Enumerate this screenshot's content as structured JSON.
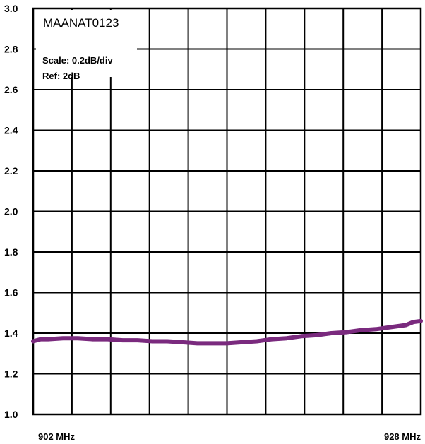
{
  "chart_data": {
    "type": "line",
    "title": "MAANAT0123",
    "annotations": [
      "Scale: 0.2dB/div",
      "Ref: 2dB"
    ],
    "xlabel": "",
    "ylabel": "",
    "x_tick_labels": [
      "902  MHz",
      "928 MHz"
    ],
    "xlim": [
      902,
      928
    ],
    "ylim": [
      1.0,
      3.0
    ],
    "y_ticks": [
      "1.0",
      "1.2",
      "1.4",
      "1.6",
      "1.8",
      "2.0",
      "2.2",
      "2.4",
      "2.6",
      "2.8",
      "3.0"
    ],
    "grid": true,
    "line_color": "#7a2a7e",
    "series": [
      {
        "x": [
          902,
          902.5,
          903,
          904,
          905,
          906,
          907,
          908,
          909,
          910,
          911,
          912,
          913,
          914,
          915,
          916,
          917,
          918,
          919,
          920,
          921,
          922,
          923,
          924,
          925,
          926,
          927,
          927.5,
          928
        ],
        "values": [
          1.36,
          1.37,
          1.37,
          1.375,
          1.375,
          1.37,
          1.37,
          1.365,
          1.365,
          1.36,
          1.36,
          1.355,
          1.35,
          1.35,
          1.35,
          1.355,
          1.36,
          1.37,
          1.375,
          1.385,
          1.39,
          1.4,
          1.405,
          1.415,
          1.42,
          1.43,
          1.44,
          1.455,
          1.46
        ]
      }
    ]
  }
}
